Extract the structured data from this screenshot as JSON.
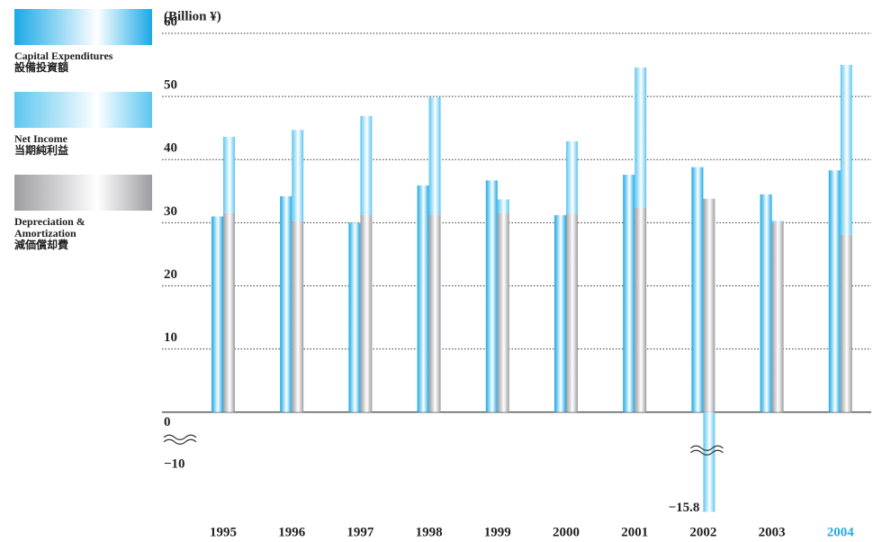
{
  "chart_data": {
    "type": "bar",
    "y_label": "(Billion ¥)",
    "categories": [
      "1995",
      "1996",
      "1997",
      "1998",
      "1999",
      "2000",
      "2001",
      "2002",
      "2003",
      "2004"
    ],
    "series": [
      {
        "name": "Capital Expenditures",
        "name_ja": "設備投資額",
        "color": "#1aa9e6",
        "group": "left",
        "values": [
          31.0,
          34.2,
          30.0,
          35.9,
          36.7,
          31.2,
          37.6,
          38.8,
          34.5,
          38.3
        ]
      },
      {
        "name": "Net Income",
        "name_ja": "当期純利益",
        "color": "#5cc6f0",
        "group": "right",
        "values": [
          12.1,
          14.4,
          15.7,
          18.6,
          2.2,
          11.5,
          22.2,
          -15.8,
          0.3,
          26.9
        ],
        "value_labels": [
          null,
          null,
          null,
          null,
          null,
          null,
          null,
          "−15.8",
          null,
          null
        ]
      },
      {
        "name": "Depreciation & Amortization",
        "name_ja": "減価償却費",
        "color": "#9d9da2",
        "group": "right",
        "values": [
          31.5,
          30.3,
          31.2,
          31.3,
          31.5,
          31.4,
          32.4,
          33.8,
          30.0,
          28.1
        ]
      }
    ],
    "stack_order": [
      2,
      1
    ],
    "ylim": [
      -16,
      60
    ],
    "yticks": [
      {
        "value": -10,
        "label": "−10"
      },
      0,
      10,
      20,
      30,
      40,
      50,
      60
    ],
    "grid": true,
    "highlight_index": 9,
    "highlight_color": "#29abe2"
  }
}
